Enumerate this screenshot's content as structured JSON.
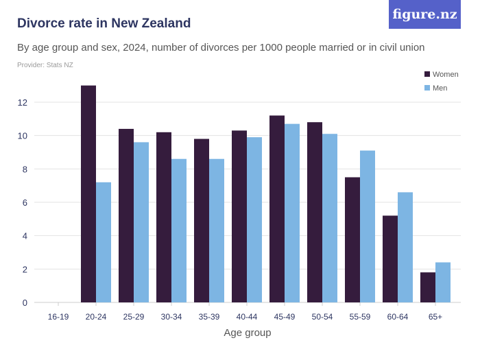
{
  "header": {
    "title": "Divorce rate in New Zealand",
    "subtitle": "By age group and sex, 2024, number of divorces per 1000 people married or in civil union",
    "provider": "Provider: Stats NZ",
    "logo": "figure.nz"
  },
  "chart_data": {
    "type": "bar",
    "title": "Divorce rate in New Zealand",
    "xlabel": "Age group",
    "ylabel": "",
    "ylim": [
      0,
      13.5
    ],
    "yticks": [
      0,
      2,
      4,
      6,
      8,
      10,
      12
    ],
    "grid": true,
    "legend": "top-right",
    "categories": [
      "16-19",
      "20-24",
      "25-29",
      "30-34",
      "35-39",
      "40-44",
      "45-49",
      "50-54",
      "55-59",
      "60-64",
      "65+"
    ],
    "series": [
      {
        "name": "Women",
        "color": "#351c3d",
        "values": [
          null,
          13.0,
          10.4,
          10.2,
          9.8,
          10.3,
          11.2,
          10.8,
          7.5,
          5.2,
          1.8
        ]
      },
      {
        "name": "Men",
        "color": "#7db5e3",
        "values": [
          null,
          7.2,
          9.6,
          8.6,
          8.6,
          9.9,
          10.7,
          10.1,
          9.1,
          6.6,
          2.4
        ]
      }
    ]
  }
}
